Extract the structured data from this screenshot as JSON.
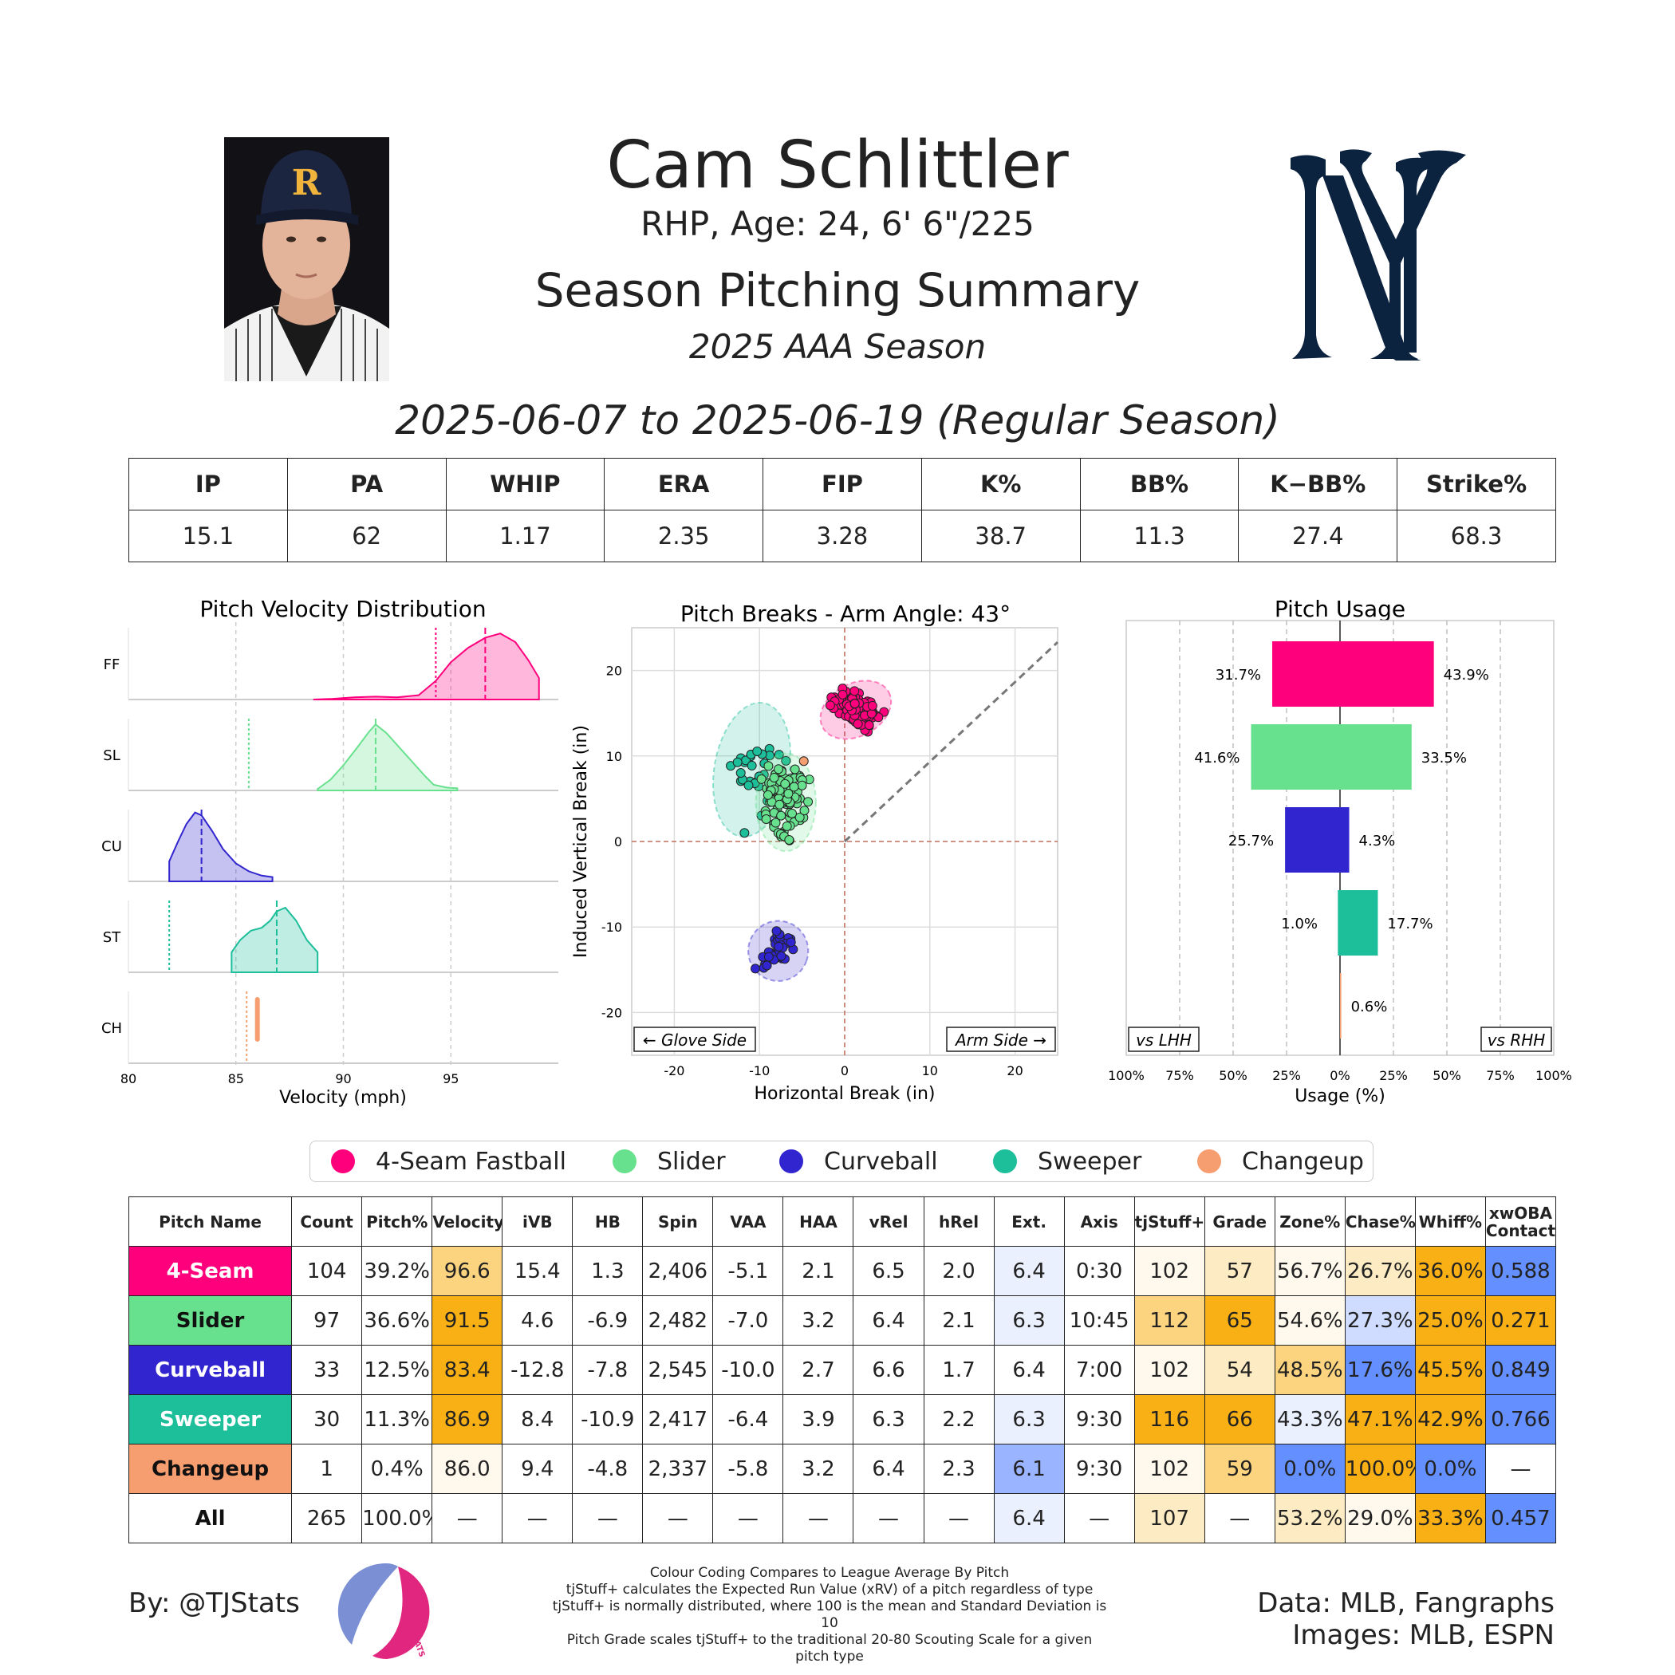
{
  "header": {
    "name": "Cam Schlittler",
    "bio": "RHP, Age: 24, 6' 6\"/225",
    "title": "Season Pitching Summary",
    "season": "2025 AAA Season",
    "date_range": "2025-06-07 to 2025-06-19 (Regular Season)",
    "team_logo": "ny-yankees-logo",
    "cap_letter": "R"
  },
  "season_stats": {
    "headers": [
      "IP",
      "PA",
      "WHIP",
      "ERA",
      "FIP",
      "K%",
      "BB%",
      "K−BB%",
      "Strike%"
    ],
    "values": [
      "15.1",
      "62",
      "1.17",
      "2.35",
      "3.28",
      "38.7",
      "11.3",
      "27.4",
      "68.3"
    ]
  },
  "colors": {
    "FF": "#ff007d",
    "SL": "#67e18d",
    "CU": "#3025ce",
    "ST": "#1dbe9a",
    "CH": "#f79e70",
    "good": "#f9b015",
    "good_mid": "#fcd47f",
    "good_light": "#fdecc3",
    "good_faint": "#fff8ec",
    "bad": "#648fff",
    "bad_mid": "#9ab4ff",
    "bad_light": "#cfdcff",
    "bad_faint": "#ebf0ff"
  },
  "chart_data": [
    {
      "type": "area",
      "title": "Pitch Velocity Distribution",
      "xlabel": "Velocity (mph)",
      "xlim": [
        80,
        100
      ],
      "xticks": [
        "80",
        "85",
        "90",
        "95"
      ],
      "series": [
        {
          "name": "FF",
          "mean": 96.6,
          "league_avg": 94.3,
          "min": 88.6,
          "max": 99.1,
          "density_x": [
            88.6,
            89.5,
            90.5,
            91.5,
            92.5,
            93.5,
            94.3,
            95.0,
            95.8,
            96.6,
            97.3,
            98.0,
            98.6,
            99.1
          ],
          "density_y": [
            0.0,
            0.01,
            0.03,
            0.04,
            0.03,
            0.06,
            0.26,
            0.52,
            0.72,
            0.86,
            0.92,
            0.8,
            0.55,
            0.3
          ]
        },
        {
          "name": "SL",
          "mean": 91.5,
          "league_avg": 85.6,
          "min": 88.8,
          "max": 95.3,
          "density_x": [
            88.8,
            89.4,
            90.0,
            90.6,
            91.2,
            91.5,
            92.0,
            92.6,
            93.2,
            93.8,
            94.2,
            94.8,
            95.3
          ],
          "density_y": [
            0.02,
            0.15,
            0.35,
            0.58,
            0.82,
            0.92,
            0.8,
            0.6,
            0.4,
            0.2,
            0.08,
            0.04,
            0.03
          ]
        },
        {
          "name": "CU",
          "mean": 83.4,
          "league_avg": null,
          "min": 81.9,
          "max": 86.7,
          "density_x": [
            81.9,
            82.3,
            82.7,
            83.1,
            83.4,
            83.9,
            84.4,
            85.0,
            85.6,
            86.2,
            86.7
          ],
          "density_y": [
            0.28,
            0.55,
            0.8,
            0.96,
            0.92,
            0.7,
            0.45,
            0.25,
            0.14,
            0.08,
            0.06
          ]
        },
        {
          "name": "ST",
          "mean": 86.9,
          "league_avg": 81.9,
          "min": 84.8,
          "max": 88.8,
          "density_x": [
            84.8,
            85.2,
            85.7,
            86.2,
            86.6,
            86.9,
            87.3,
            87.8,
            88.3,
            88.8
          ],
          "density_y": [
            0.28,
            0.45,
            0.58,
            0.62,
            0.72,
            0.85,
            0.9,
            0.72,
            0.45,
            0.28
          ]
        },
        {
          "name": "CH",
          "mean": 86.0,
          "league_avg": 85.5,
          "min": 86.0,
          "max": 86.0,
          "density_x": [
            86.0
          ],
          "density_y": [
            1.0
          ]
        }
      ]
    },
    {
      "type": "scatter",
      "title": "Pitch Breaks - Arm Angle: 43°",
      "xlabel": "Horizontal Break (in)",
      "ylabel": "Induced Vertical Break (in)",
      "xlim": [
        -25,
        25
      ],
      "ylim": [
        -25,
        25
      ],
      "xticks": [
        "-20",
        "-10",
        "0",
        "10",
        "20"
      ],
      "yticks": [
        "20",
        "10",
        "0",
        "-10",
        "-20"
      ],
      "arm_angle_deg": 43,
      "glove_side_label": "← Glove Side",
      "arm_side_label": "Arm Side →",
      "series": [
        {
          "name": "FF",
          "count": 104,
          "center": [
            1.3,
            15.4
          ],
          "spread": [
            2.0,
            1.4
          ],
          "tilt_deg": 28
        },
        {
          "name": "SL",
          "count": 97,
          "center": [
            -6.9,
            4.6
          ],
          "spread": [
            1.6,
            2.6
          ],
          "tilt_deg": 0
        },
        {
          "name": "CU",
          "count": 33,
          "center": [
            -7.8,
            -12.8
          ],
          "spread": [
            1.6,
            1.6
          ],
          "tilt_deg": -20
        },
        {
          "name": "ST",
          "count": 30,
          "center": [
            -10.9,
            8.4
          ],
          "spread": [
            2.0,
            3.6
          ],
          "tilt_deg": -10
        },
        {
          "name": "CH",
          "count": 1,
          "center": [
            -4.8,
            9.4
          ],
          "spread": [
            0,
            0
          ],
          "tilt_deg": 0
        }
      ]
    },
    {
      "type": "bar",
      "title": "Pitch Usage",
      "xlabel": "Usage (%)",
      "xticks": [
        "100%",
        "75%",
        "50%",
        "25%",
        "0%",
        "25%",
        "50%",
        "75%",
        "100%"
      ],
      "lhh_label": "vs LHH",
      "rhh_label": "vs RHH",
      "categories": [
        "FF",
        "SL",
        "CU",
        "ST",
        "CH"
      ],
      "series": [
        {
          "name": "vs LHH",
          "values": [
            31.7,
            41.6,
            25.7,
            1.0,
            0.0
          ],
          "labels": [
            "31.7%",
            "41.6%",
            "25.7%",
            "1.0%",
            ""
          ]
        },
        {
          "name": "vs RHH",
          "values": [
            43.9,
            33.5,
            4.3,
            17.7,
            0.6
          ],
          "labels": [
            "43.9%",
            "33.5%",
            "4.3%",
            "17.7%",
            "0.6%"
          ]
        }
      ]
    }
  ],
  "legend": [
    {
      "code": "FF",
      "label": "4-Seam Fastball"
    },
    {
      "code": "SL",
      "label": "Slider"
    },
    {
      "code": "CU",
      "label": "Curveball"
    },
    {
      "code": "ST",
      "label": "Sweeper"
    },
    {
      "code": "CH",
      "label": "Changeup"
    }
  ],
  "pitch_table": {
    "headers": [
      "Pitch Name",
      "Count",
      "Pitch%",
      "Velocity",
      "iVB",
      "HB",
      "Spin",
      "VAA",
      "HAA",
      "vRel",
      "hRel",
      "Ext.",
      "Axis",
      "tjStuff+",
      "Grade",
      "Zone%",
      "Chase%",
      "Whiff%",
      "xwOBA Contact"
    ],
    "rows": [
      {
        "name": "4-Seam",
        "code": "FF",
        "text_color": "#ffffff",
        "cells": [
          "104",
          "39.2%",
          "96.6",
          "15.4",
          "1.3",
          "2,406",
          "-5.1",
          "2.1",
          "6.5",
          "2.0",
          "6.4",
          "0:30",
          "102",
          "57",
          "56.7%",
          "26.7%",
          "36.0%",
          "0.588"
        ],
        "shades": [
          "",
          "",
          "good_mid",
          "",
          "",
          "",
          "",
          "",
          "",
          "",
          "bad_faint",
          "",
          "good_faint",
          "good_light",
          "good_faint",
          "good_light",
          "good",
          "bad"
        ]
      },
      {
        "name": "Slider",
        "code": "SL",
        "text_color": "#111111",
        "cells": [
          "97",
          "36.6%",
          "91.5",
          "4.6",
          "-6.9",
          "2,482",
          "-7.0",
          "3.2",
          "6.4",
          "2.1",
          "6.3",
          "10:45",
          "112",
          "65",
          "54.6%",
          "27.3%",
          "25.0%",
          "0.271"
        ],
        "shades": [
          "",
          "",
          "good",
          "",
          "",
          "",
          "",
          "",
          "",
          "",
          "bad_faint",
          "",
          "good_mid",
          "good",
          "good_faint",
          "bad_light",
          "good",
          "good"
        ]
      },
      {
        "name": "Curveball",
        "code": "CU",
        "text_color": "#ffffff",
        "cells": [
          "33",
          "12.5%",
          "83.4",
          "-12.8",
          "-7.8",
          "2,545",
          "-10.0",
          "2.7",
          "6.6",
          "1.7",
          "6.4",
          "7:00",
          "102",
          "54",
          "48.5%",
          "17.6%",
          "45.5%",
          "0.849"
        ],
        "shades": [
          "",
          "",
          "good",
          "",
          "",
          "",
          "",
          "",
          "",
          "",
          "",
          "",
          "good_faint",
          "good_light",
          "good_mid",
          "bad",
          "good",
          "bad"
        ]
      },
      {
        "name": "Sweeper",
        "code": "ST",
        "text_color": "#ffffff",
        "cells": [
          "30",
          "11.3%",
          "86.9",
          "8.4",
          "-10.9",
          "2,417",
          "-6.4",
          "3.9",
          "6.3",
          "2.2",
          "6.3",
          "9:30",
          "116",
          "66",
          "43.3%",
          "47.1%",
          "42.9%",
          "0.766"
        ],
        "shades": [
          "",
          "",
          "good",
          "",
          "",
          "",
          "",
          "",
          "",
          "",
          "bad_faint",
          "",
          "good",
          "good",
          "bad_faint",
          "good",
          "good",
          "bad"
        ]
      },
      {
        "name": "Changeup",
        "code": "CH",
        "text_color": "#111111",
        "cells": [
          "1",
          "0.4%",
          "86.0",
          "9.4",
          "-4.8",
          "2,337",
          "-5.8",
          "3.2",
          "6.4",
          "2.3",
          "6.1",
          "9:30",
          "102",
          "59",
          "0.0%",
          "100.0%",
          "0.0%",
          "—"
        ],
        "shades": [
          "",
          "",
          "good_faint",
          "",
          "",
          "",
          "",
          "",
          "",
          "",
          "bad_mid",
          "",
          "good_faint",
          "good_mid",
          "bad",
          "good",
          "bad",
          ""
        ]
      },
      {
        "name": "All",
        "code": "",
        "text_color": "#111111",
        "cells": [
          "265",
          "100.0%",
          "—",
          "—",
          "—",
          "—",
          "—",
          "—",
          "—",
          "—",
          "6.4",
          "—",
          "107",
          "—",
          "53.2%",
          "29.0%",
          "33.3%",
          "0.457"
        ],
        "shades": [
          "",
          "",
          "",
          "",
          "",
          "",
          "",
          "",
          "",
          "",
          "bad_faint",
          "",
          "good_light",
          "",
          "good_light",
          "good_faint",
          "good",
          "bad"
        ]
      }
    ]
  },
  "footer": {
    "byline": "By: @TJStats",
    "logo_text": "STATS",
    "notes": [
      "Colour Coding Compares to League Average By Pitch",
      "tjStuff+ calculates the Expected Run Value (xRV) of a pitch regardless of type",
      "tjStuff+ is normally distributed, where 100 is the mean and Standard Deviation is 10",
      "Pitch Grade scales tjStuff+ to the traditional 20-80 Scouting Scale for a given pitch type"
    ],
    "data_source": "Data: MLB, Fangraphs",
    "image_source": "Images: MLB, ESPN"
  }
}
